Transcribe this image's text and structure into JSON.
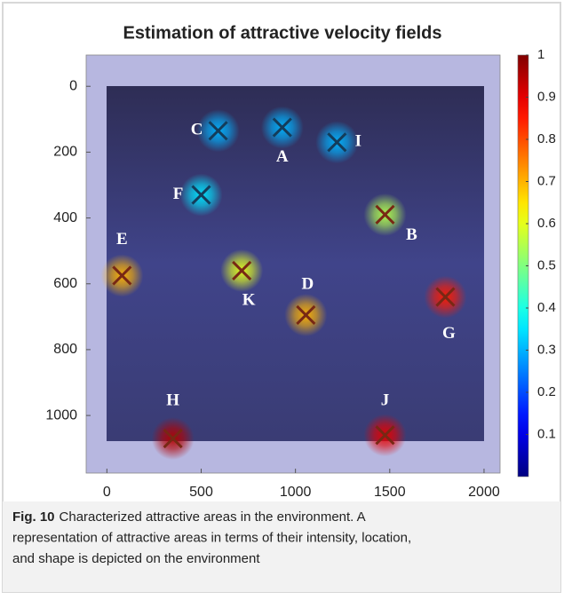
{
  "chart_data": {
    "type": "scatter",
    "title": "Estimation of attractive velocity fields",
    "points": [
      {
        "label": "A",
        "x": 930,
        "y": 125,
        "value": 0.3
      },
      {
        "label": "C",
        "x": 590,
        "y": 135,
        "value": 0.3
      },
      {
        "label": "I",
        "x": 1220,
        "y": 170,
        "value": 0.3
      },
      {
        "label": "F",
        "x": 500,
        "y": 330,
        "value": 0.35
      },
      {
        "label": "B",
        "x": 1475,
        "y": 390,
        "value": 0.55
      },
      {
        "label": "E",
        "x": 80,
        "y": 575,
        "value": 0.7
      },
      {
        "label": "K",
        "x": 715,
        "y": 560,
        "value": 0.6
      },
      {
        "label": "D",
        "x": 1055,
        "y": 695,
        "value": 0.7
      },
      {
        "label": "G",
        "x": 1795,
        "y": 640,
        "value": 0.85
      },
      {
        "label": "H",
        "x": 350,
        "y": 1070,
        "value": 0.95
      },
      {
        "label": "J",
        "x": 1475,
        "y": 1060,
        "value": 0.9
      }
    ],
    "xlim": [
      -110,
      2085
    ],
    "xticks": [
      0,
      500,
      1000,
      1500,
      2000
    ],
    "ylim": [
      -95,
      1175
    ],
    "yticks": [
      0,
      200,
      400,
      600,
      800,
      1000
    ],
    "y_inverted": true,
    "colormap": "jet",
    "clim": [
      0,
      1
    ],
    "colorbar_ticks": [
      0.1,
      0.2,
      0.3,
      0.4,
      0.5,
      0.6,
      0.7,
      0.8,
      0.9,
      1
    ]
  },
  "caption": {
    "label": "Fig. 10",
    "lines": [
      "Characterized attractive areas in the environment. A",
      "representation of attractive areas in terms of their intensity, location,",
      "and shape is depicted on the environment"
    ]
  }
}
